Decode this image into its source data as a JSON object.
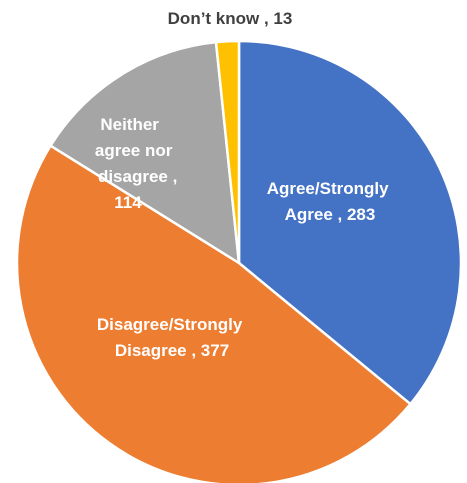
{
  "chart_data": {
    "type": "pie",
    "title": "",
    "slices": [
      {
        "label": "Agree/Strongly Agree",
        "value": 283,
        "color": "#4472C4",
        "label_color": "#ffffff"
      },
      {
        "label": "Disagree/Strongly Disagree",
        "value": 377,
        "color": "#ED7D31",
        "label_color": "#ffffff"
      },
      {
        "label": "Neither agree nor disagree",
        "value": 114,
        "color": "#A5A5A5",
        "label_color": "#ffffff"
      },
      {
        "label": "Don’t know",
        "value": 13,
        "color": "#FFC000",
        "label_color": "#404040"
      }
    ],
    "data_labels": {
      "agree": [
        "Agree/Strongly",
        "Agree , 283"
      ],
      "disagree": [
        "Disagree/Strongly",
        "Disagree , 377"
      ],
      "neither": [
        "Neither",
        "agree nor",
        "disagree ,",
        "114"
      ],
      "dontknow": [
        "Don’t know , 13"
      ]
    },
    "start_angle_deg": 0,
    "direction": "clockwise",
    "legend": "none"
  }
}
